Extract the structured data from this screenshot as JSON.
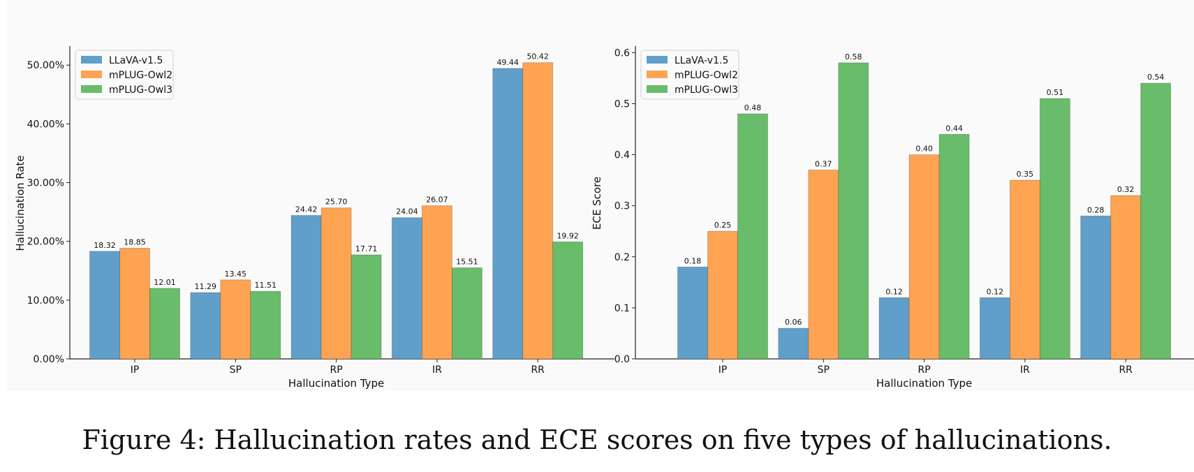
{
  "chart_data": [
    {
      "type": "bar",
      "categories": [
        "IP",
        "SP",
        "RP",
        "IR",
        "RR"
      ],
      "series": [
        {
          "name": "LLaVA-v1.5",
          "color": "#619fcb",
          "values": [
            18.32,
            11.29,
            24.42,
            24.04,
            49.44
          ],
          "labels": [
            "18.32",
            "11.29",
            "24.42",
            "24.04",
            "49.44"
          ]
        },
        {
          "name": "mPLUG-Owl2",
          "color": "#fea352",
          "values": [
            18.85,
            13.45,
            25.7,
            26.07,
            50.42
          ],
          "labels": [
            "18.85",
            "13.45",
            "25.70",
            "26.07",
            "50.42"
          ]
        },
        {
          "name": "mPLUG-Owl3",
          "color": "#69bc69",
          "values": [
            12.01,
            11.51,
            17.71,
            15.51,
            19.92
          ],
          "labels": [
            "12.01",
            "11.51",
            "17.71",
            "15.51",
            "19.92"
          ]
        }
      ],
      "title": "",
      "xlabel": "Hallucination Type",
      "ylabel": "Hallucination Rate",
      "ylim": [
        0,
        53
      ],
      "yticks": [
        0,
        10,
        20,
        30,
        40,
        50
      ],
      "ytick_labels": [
        "0.00%",
        "10.00%",
        "20.00%",
        "30.00%",
        "40.00%",
        "50.00%"
      ],
      "legend_position": "top-left"
    },
    {
      "type": "bar",
      "categories": [
        "IP",
        "SP",
        "RP",
        "IR",
        "RR"
      ],
      "series": [
        {
          "name": "LLaVA-v1.5",
          "color": "#619fcb",
          "values": [
            0.18,
            0.06,
            0.12,
            0.12,
            0.28
          ],
          "labels": [
            "0.18",
            "0.06",
            "0.12",
            "0.12",
            "0.28"
          ]
        },
        {
          "name": "mPLUG-Owl2",
          "color": "#fea352",
          "values": [
            0.25,
            0.37,
            0.4,
            0.35,
            0.32
          ],
          "labels": [
            "0.25",
            "0.37",
            "0.40",
            "0.35",
            "0.32"
          ]
        },
        {
          "name": "mPLUG-Owl3",
          "color": "#69bc69",
          "values": [
            0.48,
            0.58,
            0.44,
            0.51,
            0.54
          ],
          "labels": [
            "0.48",
            "0.58",
            "0.44",
            "0.51",
            "0.54"
          ]
        }
      ],
      "title": "",
      "xlabel": "Hallucination Type",
      "ylabel": "ECE Score",
      "ylim": [
        0,
        0.61
      ],
      "yticks": [
        0,
        0.1,
        0.2,
        0.3,
        0.4,
        0.5,
        0.6
      ],
      "ytick_labels": [
        "0.0",
        "0.1",
        "0.2",
        "0.3",
        "0.4",
        "0.5",
        "0.6"
      ],
      "legend_position": "top-left"
    }
  ],
  "caption": "Figure 4: Hallucination rates and ECE scores on five types of hallucinations."
}
